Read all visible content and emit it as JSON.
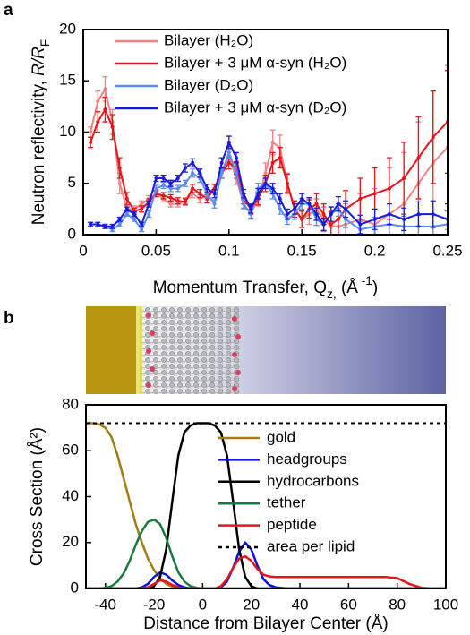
{
  "chart_data": [
    {
      "type": "line",
      "panel": "a",
      "x_label": [
        "Momentum Transfer, Q",
        "z,",
        " (Å",
        " -1",
        ")"
      ],
      "y_label": [
        "Neutron reflectivity, ",
        "R/R",
        "F"
      ],
      "x": [
        0.005,
        0.01,
        0.015,
        0.02,
        0.025,
        0.03,
        0.035,
        0.04,
        0.045,
        0.05,
        0.055,
        0.06,
        0.065,
        0.07,
        0.075,
        0.08,
        0.085,
        0.09,
        0.095,
        0.1,
        0.105,
        0.11,
        0.115,
        0.12,
        0.125,
        0.13,
        0.135,
        0.14,
        0.145,
        0.15,
        0.155,
        0.16,
        0.165,
        0.17,
        0.175,
        0.18,
        0.19,
        0.2,
        0.21,
        0.22,
        0.23,
        0.24,
        0.25
      ],
      "series": [
        {
          "name": "Bilayer (H₂O)",
          "color": "#f08484",
          "values": [
            10,
            13,
            14.2,
            11,
            5,
            2.5,
            2.5,
            3,
            3.5,
            4,
            3.5,
            3,
            3,
            3.3,
            4,
            3.5,
            3.8,
            4.5,
            6,
            7.5,
            5.5,
            3,
            2,
            3.5,
            6,
            9,
            8.5,
            5,
            2.5,
            1.5,
            2,
            2.5,
            1.5,
            0.8,
            0.8,
            1,
            1.5,
            1,
            2,
            3,
            5,
            7,
            8.5
          ],
          "errors": [
            0.5,
            1,
            1.2,
            1.2,
            1,
            0.6,
            0.3,
            0.3,
            0.3,
            0.3,
            0.3,
            0.3,
            0.3,
            0.3,
            0.4,
            0.4,
            0.4,
            0.4,
            0.5,
            0.6,
            0.6,
            0.5,
            0.5,
            0.7,
            1,
            1.2,
            1.2,
            1,
            0.8,
            0.8,
            1,
            1,
            1.2,
            1.5,
            1.8,
            2,
            2.5,
            3.5,
            4.5,
            5,
            6,
            7,
            8
          ]
        },
        {
          "name": "Bilayer + 3 μM α-syn (H₂O)",
          "color": "#e8141c",
          "values": [
            9,
            11,
            12.2,
            10.5,
            6.5,
            3.5,
            2.3,
            2.5,
            3.2,
            4,
            3.8,
            3.6,
            3.3,
            3.2,
            4.5,
            4,
            3.5,
            4.5,
            6,
            7,
            6.5,
            3.5,
            2.5,
            3.5,
            5,
            7,
            7.5,
            5,
            2.5,
            1.5,
            2.5,
            3,
            2,
            1,
            1.5,
            2.5,
            3.5,
            4,
            4.5,
            5.5,
            7.5,
            9.5,
            11
          ],
          "errors": [
            0.5,
            1,
            1.2,
            1.2,
            1,
            0.6,
            0.3,
            0.3,
            0.3,
            0.3,
            0.3,
            0.3,
            0.3,
            0.3,
            0.4,
            0.4,
            0.4,
            0.4,
            0.5,
            0.6,
            0.6,
            0.5,
            0.5,
            0.6,
            0.8,
            1,
            1,
            0.9,
            0.8,
            0.8,
            0.9,
            1,
            1,
            1.2,
            1.5,
            1.8,
            2,
            2.5,
            3,
            3.5,
            4,
            4.5,
            5
          ]
        },
        {
          "name": "Bilayer (D₂O)",
          "color": "#5b8cf0",
          "values": [
            1,
            1,
            0.8,
            0.5,
            1,
            2,
            1.5,
            0.5,
            2,
            4.5,
            4.8,
            4.5,
            4.5,
            5,
            6,
            5.5,
            4,
            3,
            6,
            8,
            6,
            3,
            2,
            4.5,
            5,
            4,
            2.5,
            1.5,
            2,
            3,
            3,
            1.5,
            1,
            2,
            2.5,
            1.5,
            0.5,
            0.8,
            1,
            0.8,
            0.8,
            0.8,
            1
          ],
          "errors": [
            0.2,
            0.2,
            0.2,
            0.2,
            0.2,
            0.2,
            0.2,
            0.2,
            0.3,
            0.3,
            0.3,
            0.3,
            0.3,
            0.3,
            0.4,
            0.4,
            0.4,
            0.4,
            0.5,
            0.6,
            0.5,
            0.4,
            0.4,
            0.5,
            0.5,
            0.5,
            0.5,
            0.5,
            0.5,
            0.5,
            0.6,
            0.6,
            0.6,
            0.7,
            0.7,
            0.8,
            0.8,
            0.9,
            1,
            1,
            1.1,
            1.2,
            1.3
          ]
        },
        {
          "name": "Bilayer + 3 μM α-syn (D₂O)",
          "color": "#1a1adc",
          "values": [
            1,
            1,
            0.8,
            0.8,
            1.5,
            2.5,
            2,
            1,
            3,
            5.5,
            5.5,
            5,
            5.5,
            6.5,
            7,
            6,
            4.5,
            4,
            7,
            9,
            7.5,
            4,
            2.5,
            4,
            5,
            4.5,
            3.5,
            2,
            2.5,
            3.5,
            3,
            2,
            1,
            2,
            3,
            2.5,
            1,
            1.5,
            2,
            1.5,
            2,
            2,
            1.5
          ],
          "errors": [
            0.2,
            0.2,
            0.2,
            0.2,
            0.2,
            0.2,
            0.2,
            0.2,
            0.3,
            0.3,
            0.3,
            0.3,
            0.3,
            0.4,
            0.4,
            0.4,
            0.4,
            0.4,
            0.5,
            0.6,
            0.5,
            0.4,
            0.4,
            0.5,
            0.5,
            0.5,
            0.5,
            0.5,
            0.5,
            0.5,
            0.6,
            0.6,
            0.6,
            0.7,
            0.7,
            0.8,
            0.9,
            1,
            1,
            1.1,
            1.2,
            1.3,
            1.5
          ]
        }
      ],
      "xlim": [
        0,
        0.25
      ],
      "xticks": [
        0,
        0.05,
        0.1,
        0.15,
        0.2,
        0.25
      ],
      "ylim": [
        0,
        20
      ],
      "yticks": [
        0,
        5,
        10,
        15,
        20
      ]
    },
    {
      "type": "line",
      "panel": "b",
      "x_label": "Distance from Bilayer Center (Å)",
      "y_label": "Cross Section (Å²)",
      "x": [
        -48,
        -45,
        -42.5,
        -40,
        -37.5,
        -35,
        -32.5,
        -30,
        -27.5,
        -25,
        -22.5,
        -20,
        -17.5,
        -15,
        -12.5,
        -10,
        -7.5,
        -5,
        -2.5,
        0,
        2.5,
        5,
        7.5,
        10,
        12.5,
        15,
        17.5,
        20,
        22.5,
        25,
        27.5,
        30,
        35,
        40,
        45,
        50,
        55,
        60,
        65,
        70,
        75,
        80,
        85,
        90,
        95,
        100
      ],
      "series": [
        {
          "name": "gold",
          "color": "#a47a14",
          "values": [
            72,
            72,
            71.5,
            70,
            66,
            58,
            48,
            38,
            28,
            20,
            13,
            8,
            4.5,
            2,
            0.8,
            0.3,
            0,
            0,
            0,
            0,
            0,
            0,
            0,
            0,
            0,
            0,
            0,
            0,
            0,
            0,
            0,
            0,
            0,
            0,
            0,
            0,
            0,
            0,
            0,
            0,
            0,
            0,
            0,
            0,
            0,
            0
          ]
        },
        {
          "name": "headgroups",
          "color": "#1010e0",
          "values": [
            0,
            0,
            0,
            0,
            0,
            0,
            0,
            0,
            0,
            0.5,
            2,
            5,
            7,
            6,
            3.5,
            1.5,
            0.5,
            0,
            0,
            0,
            0,
            0,
            0.5,
            3,
            9,
            16,
            20,
            17,
            10,
            4,
            1.5,
            0.5,
            0,
            0,
            0,
            0,
            0,
            0,
            0,
            0,
            0,
            0,
            0,
            0,
            0,
            0
          ]
        },
        {
          "name": "hydrocarbons",
          "color": "#000000",
          "values": [
            0,
            0,
            0,
            0,
            0,
            0,
            0,
            0,
            0,
            0,
            0,
            1,
            5,
            17,
            38,
            58,
            68,
            71,
            72,
            72,
            72,
            71,
            68,
            58,
            38,
            17,
            5,
            1,
            0,
            0,
            0,
            0,
            0,
            0,
            0,
            0,
            0,
            0,
            0,
            0,
            0,
            0,
            0,
            0,
            0,
            0
          ]
        },
        {
          "name": "tether",
          "color": "#1a7a3c",
          "values": [
            0,
            0,
            0,
            0.3,
            1,
            3,
            6.5,
            12,
            19,
            25,
            29,
            30,
            28,
            22,
            14,
            7,
            3,
            1,
            0.3,
            0,
            0,
            0,
            0,
            0,
            0,
            0,
            0,
            0,
            0,
            0,
            0,
            0,
            0,
            0,
            0,
            0,
            0,
            0,
            0,
            0,
            0,
            0,
            0,
            0,
            0,
            0
          ]
        },
        {
          "name": "peptide",
          "color": "#e8141c",
          "values": [
            0,
            0,
            0,
            0,
            0,
            0,
            0,
            0,
            0,
            0,
            0.5,
            2,
            3.5,
            3,
            1.5,
            0.5,
            0,
            0,
            0,
            0,
            0,
            0,
            1,
            4,
            9,
            13,
            14,
            12,
            8.5,
            6,
            5.2,
            5,
            5,
            5,
            5,
            5,
            5,
            5,
            5,
            5,
            5,
            4.5,
            2,
            0.3,
            0,
            0
          ]
        }
      ],
      "reference_line": {
        "name": "area per lipid",
        "value": 72,
        "color": "#000000",
        "dashed": true
      },
      "xlim": [
        -48,
        100
      ],
      "xticks": [
        -40,
        -20,
        0,
        20,
        40,
        60,
        80,
        100
      ],
      "ylim": [
        0,
        80
      ],
      "yticks": [
        0,
        20,
        40,
        60,
        80
      ]
    }
  ]
}
